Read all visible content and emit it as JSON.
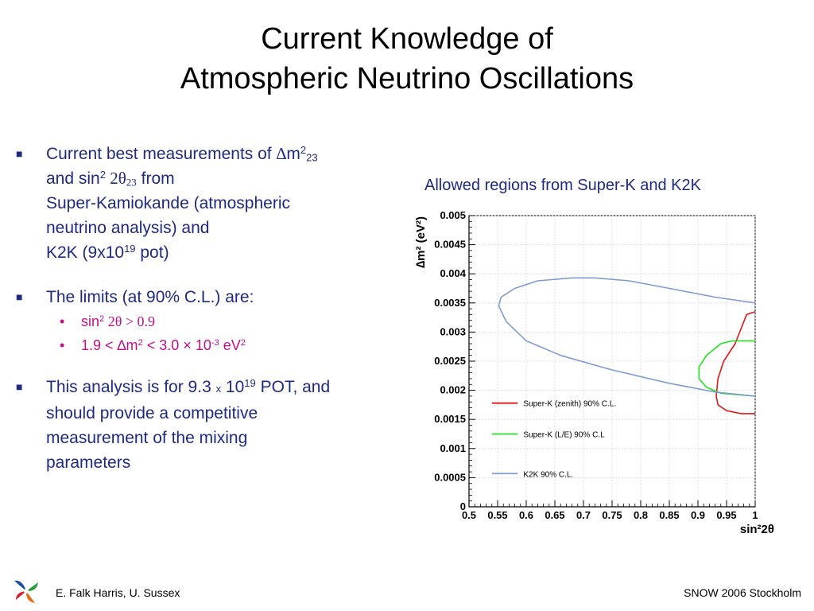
{
  "title": {
    "line1": "Current Knowledge of",
    "line2": "Atmospheric Neutrino Oscillations"
  },
  "bullets": {
    "b1": {
      "l1_text": "Current best measurements of ",
      "l1_delta": "∆",
      "l1_m": "m",
      "l1_sup": "2",
      "l1_sub": "23",
      "l2_text": "and sin",
      "l2_sup": "2",
      "l2_theta": " 2θ",
      "l2_sub": "23",
      "l2_from": " from",
      "l3": "Super-Kamiokande (atmospheric",
      "l4": "neutrino analysis) and",
      "l5_text": "K2K (9x10",
      "l5_sup": "19",
      "l5_end": " pot)"
    },
    "b2": {
      "text": "The limits (at 90% C.L.) are:",
      "s1_text": "sin",
      "s1_sup": "2",
      "s1_rest": " 2θ > 0.9",
      "s2_a": "1.9 < ∆m",
      "s2_sup": "2",
      "s2_b": " < 3.0 × 10",
      "s2_sup2": "-3",
      "s2_c": " eV",
      "s2_sup3": "2"
    },
    "b3": {
      "l1_a": "This analysis is for 9.3 ",
      "l1_x": "x",
      "l1_b": " 10",
      "l1_sup": "19",
      "l1_c": " POT, and",
      "l2": "should provide a competitive",
      "l3": "measurement of the mixing",
      "l4": "parameters"
    }
  },
  "caption": "Allowed regions from Super-K and K2K",
  "footer": {
    "left": "E. Falk Harris, U. Sussex",
    "right": "SNOW 2006 Stockholm"
  },
  "colors": {
    "text_blue": "#1f2a80",
    "sub_magenta": "#c0108a",
    "superk_zenith": "#e01818",
    "superk_le": "#22e022",
    "k2k": "#7f9ccf"
  },
  "chart_data": {
    "type": "line",
    "xlabel": "sin²2θ",
    "ylabel": "∆m² (eV²)",
    "xlim": [
      0.5,
      1.0
    ],
    "ylim": [
      0,
      0.005
    ],
    "x_ticks": [
      "0.5",
      "0.55",
      "0.6",
      "0.65",
      "0.7",
      "0.75",
      "0.8",
      "0.85",
      "0.9",
      "0.95",
      "1"
    ],
    "y_ticks": [
      "0",
      "0.0005",
      "0.001",
      "0.0015",
      "0.002",
      "0.0025",
      "0.003",
      "0.0035",
      "0.004",
      "0.0045",
      "0.005"
    ],
    "legend": "bottom-left",
    "series": [
      {
        "name": "Super-K (zenith) 90% C.L.",
        "color": "#e01818",
        "x": [
          1.0,
          0.985,
          0.965,
          0.945,
          0.935,
          0.932,
          0.935,
          0.95,
          0.975,
          1.0
        ],
        "y": [
          0.00335,
          0.0033,
          0.0028,
          0.0025,
          0.0022,
          0.0019,
          0.00175,
          0.00165,
          0.0016,
          0.0016
        ]
      },
      {
        "name": "Super-K (L/E) 90% C.L",
        "color": "#22e022",
        "x": [
          1.0,
          0.96,
          0.94,
          0.915,
          0.902,
          0.902,
          0.915,
          0.94,
          1.0
        ],
        "y": [
          0.00285,
          0.00285,
          0.0028,
          0.0026,
          0.0024,
          0.0022,
          0.00205,
          0.00195,
          0.0019
        ]
      },
      {
        "name": "K2K 90% C.L.",
        "color": "#7f9ccf",
        "x": [
          1.0,
          0.93,
          0.85,
          0.78,
          0.72,
          0.68,
          0.62,
          0.58,
          0.556,
          0.552,
          0.565,
          0.6,
          0.66,
          0.75,
          0.85,
          0.93,
          1.0
        ],
        "y": [
          0.0035,
          0.0036,
          0.00375,
          0.00388,
          0.00393,
          0.00393,
          0.00388,
          0.00375,
          0.0036,
          0.00345,
          0.00318,
          0.00285,
          0.0026,
          0.00235,
          0.00212,
          0.00197,
          0.0019
        ]
      }
    ]
  }
}
